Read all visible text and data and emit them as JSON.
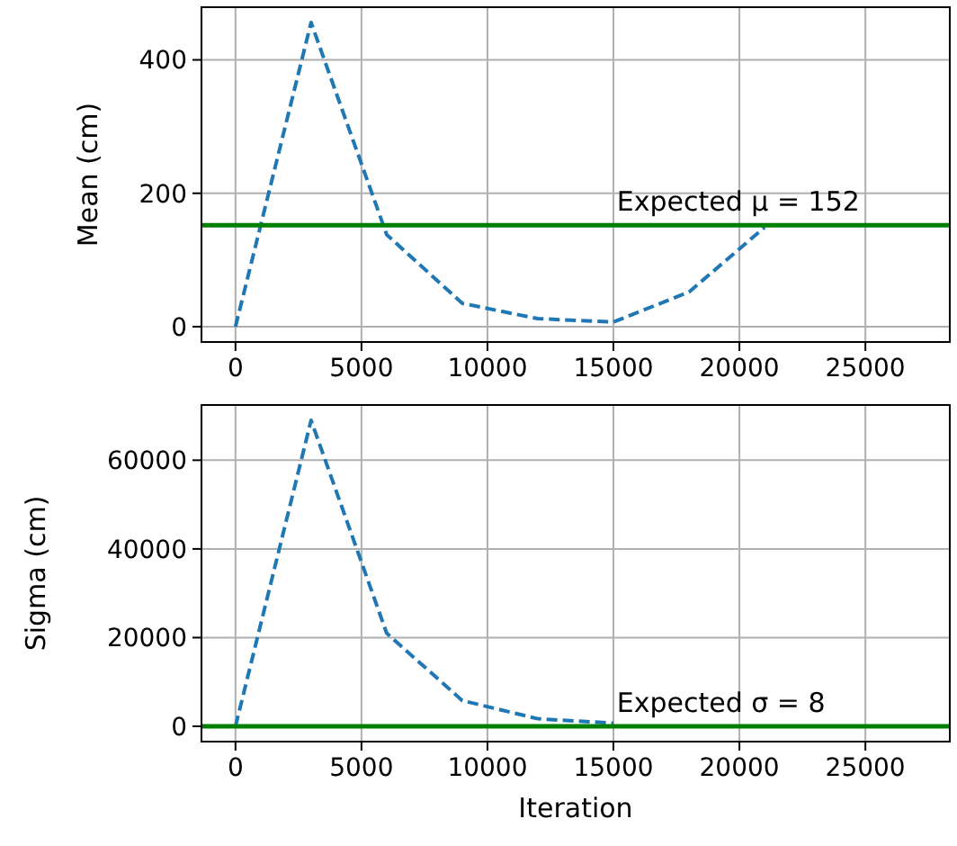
{
  "chart_data": [
    {
      "type": "line",
      "ylabel": "Mean (cm)",
      "x": [
        0,
        3000,
        6000,
        9000,
        12000,
        15000,
        18000,
        21000
      ],
      "series": [
        {
          "color": "#1f77b4",
          "values": [
            0,
            456,
            138,
            35,
            12,
            7,
            52,
            149
          ]
        }
      ],
      "line_style": "dashed",
      "xlim": [
        -1350,
        28350
      ],
      "ylim": [
        -23,
        479
      ],
      "xticks": [
        0,
        5000,
        10000,
        15000,
        20000,
        25000
      ],
      "yticks": [
        0,
        200,
        400
      ],
      "grid": true,
      "ref_lines": [
        {
          "axis": "y",
          "value": 152,
          "label": "Expected μ = 152",
          "color": "#008000",
          "line_style": "solid"
        }
      ]
    },
    {
      "type": "line",
      "ylabel": "Sigma (cm)",
      "xlabel": "Iteration",
      "x": [
        0,
        3000,
        6000,
        9000,
        12000,
        15000
      ],
      "series": [
        {
          "color": "#1f77b4",
          "values": [
            0,
            69000,
            21000,
            5800,
            1700,
            700
          ]
        }
      ],
      "line_style": "dashed",
      "xlim": [
        -1350,
        28350
      ],
      "ylim": [
        -3450,
        72450
      ],
      "xticks": [
        0,
        5000,
        10000,
        15000,
        20000,
        25000
      ],
      "yticks": [
        0,
        20000,
        40000,
        60000
      ],
      "grid": true,
      "ref_lines": [
        {
          "axis": "y",
          "value": 8,
          "label": "Expected σ = 8",
          "color": "#008000",
          "line_style": "solid"
        }
      ]
    }
  ]
}
